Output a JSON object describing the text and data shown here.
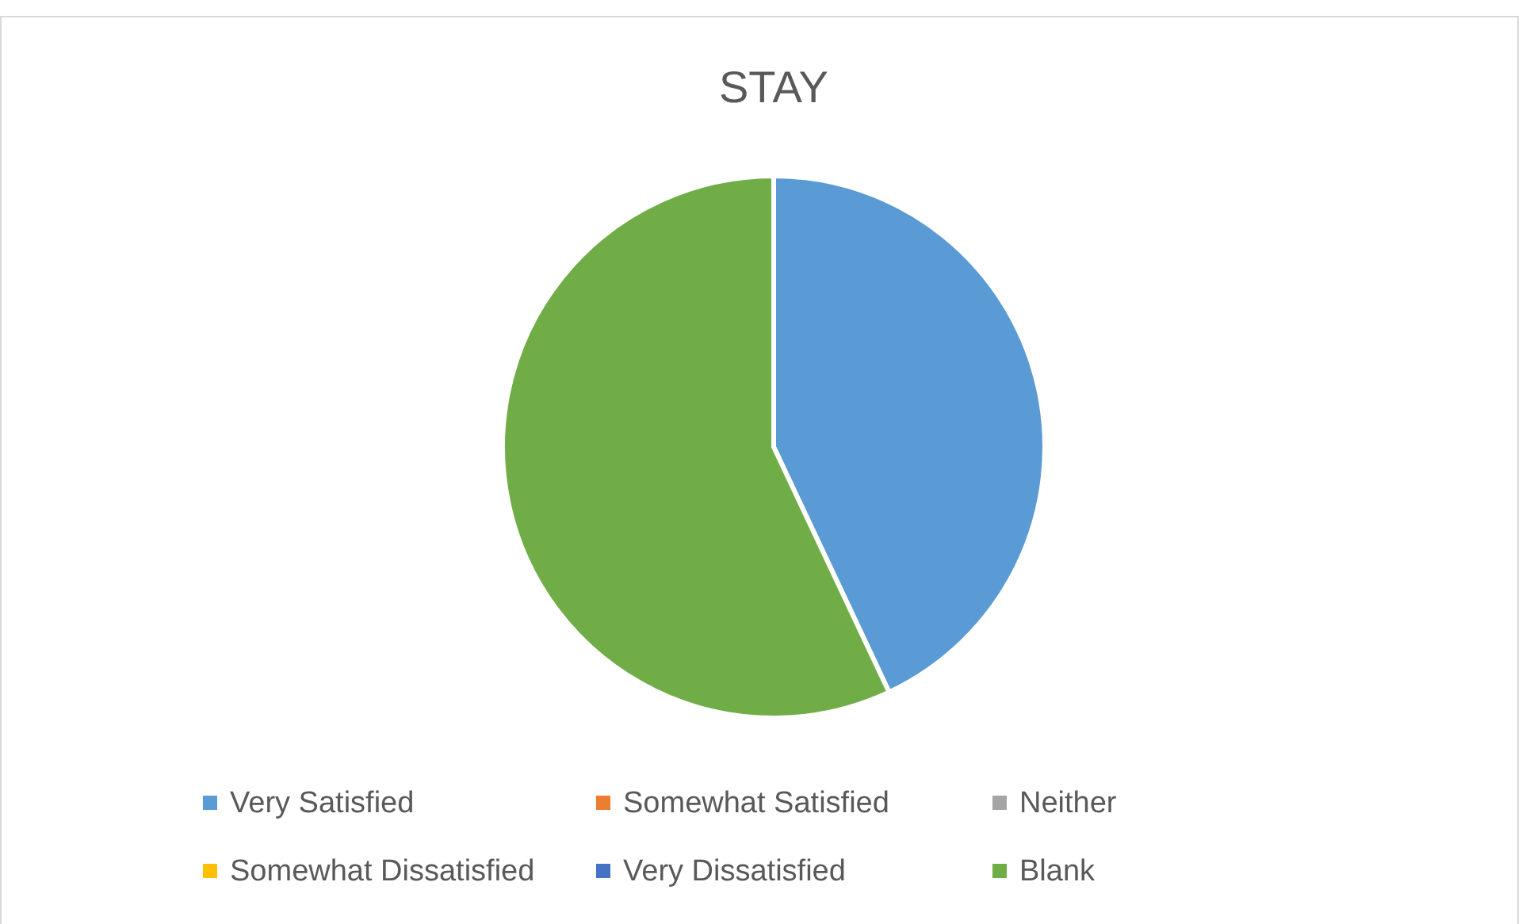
{
  "chart_data": {
    "type": "pie",
    "title": "STAY",
    "categories": [
      "Very Satisfied",
      "Somewhat Satisfied",
      "Neither",
      "Somewhat Dissatisfied",
      "Very Dissatisfied",
      "Blank"
    ],
    "values": [
      43,
      0,
      0,
      0,
      0,
      57
    ],
    "colors": [
      "#5b9bd5",
      "#ed7d31",
      "#a5a5a5",
      "#ffc000",
      "#4472c4",
      "#70ad47"
    ],
    "legend": "bottom"
  }
}
